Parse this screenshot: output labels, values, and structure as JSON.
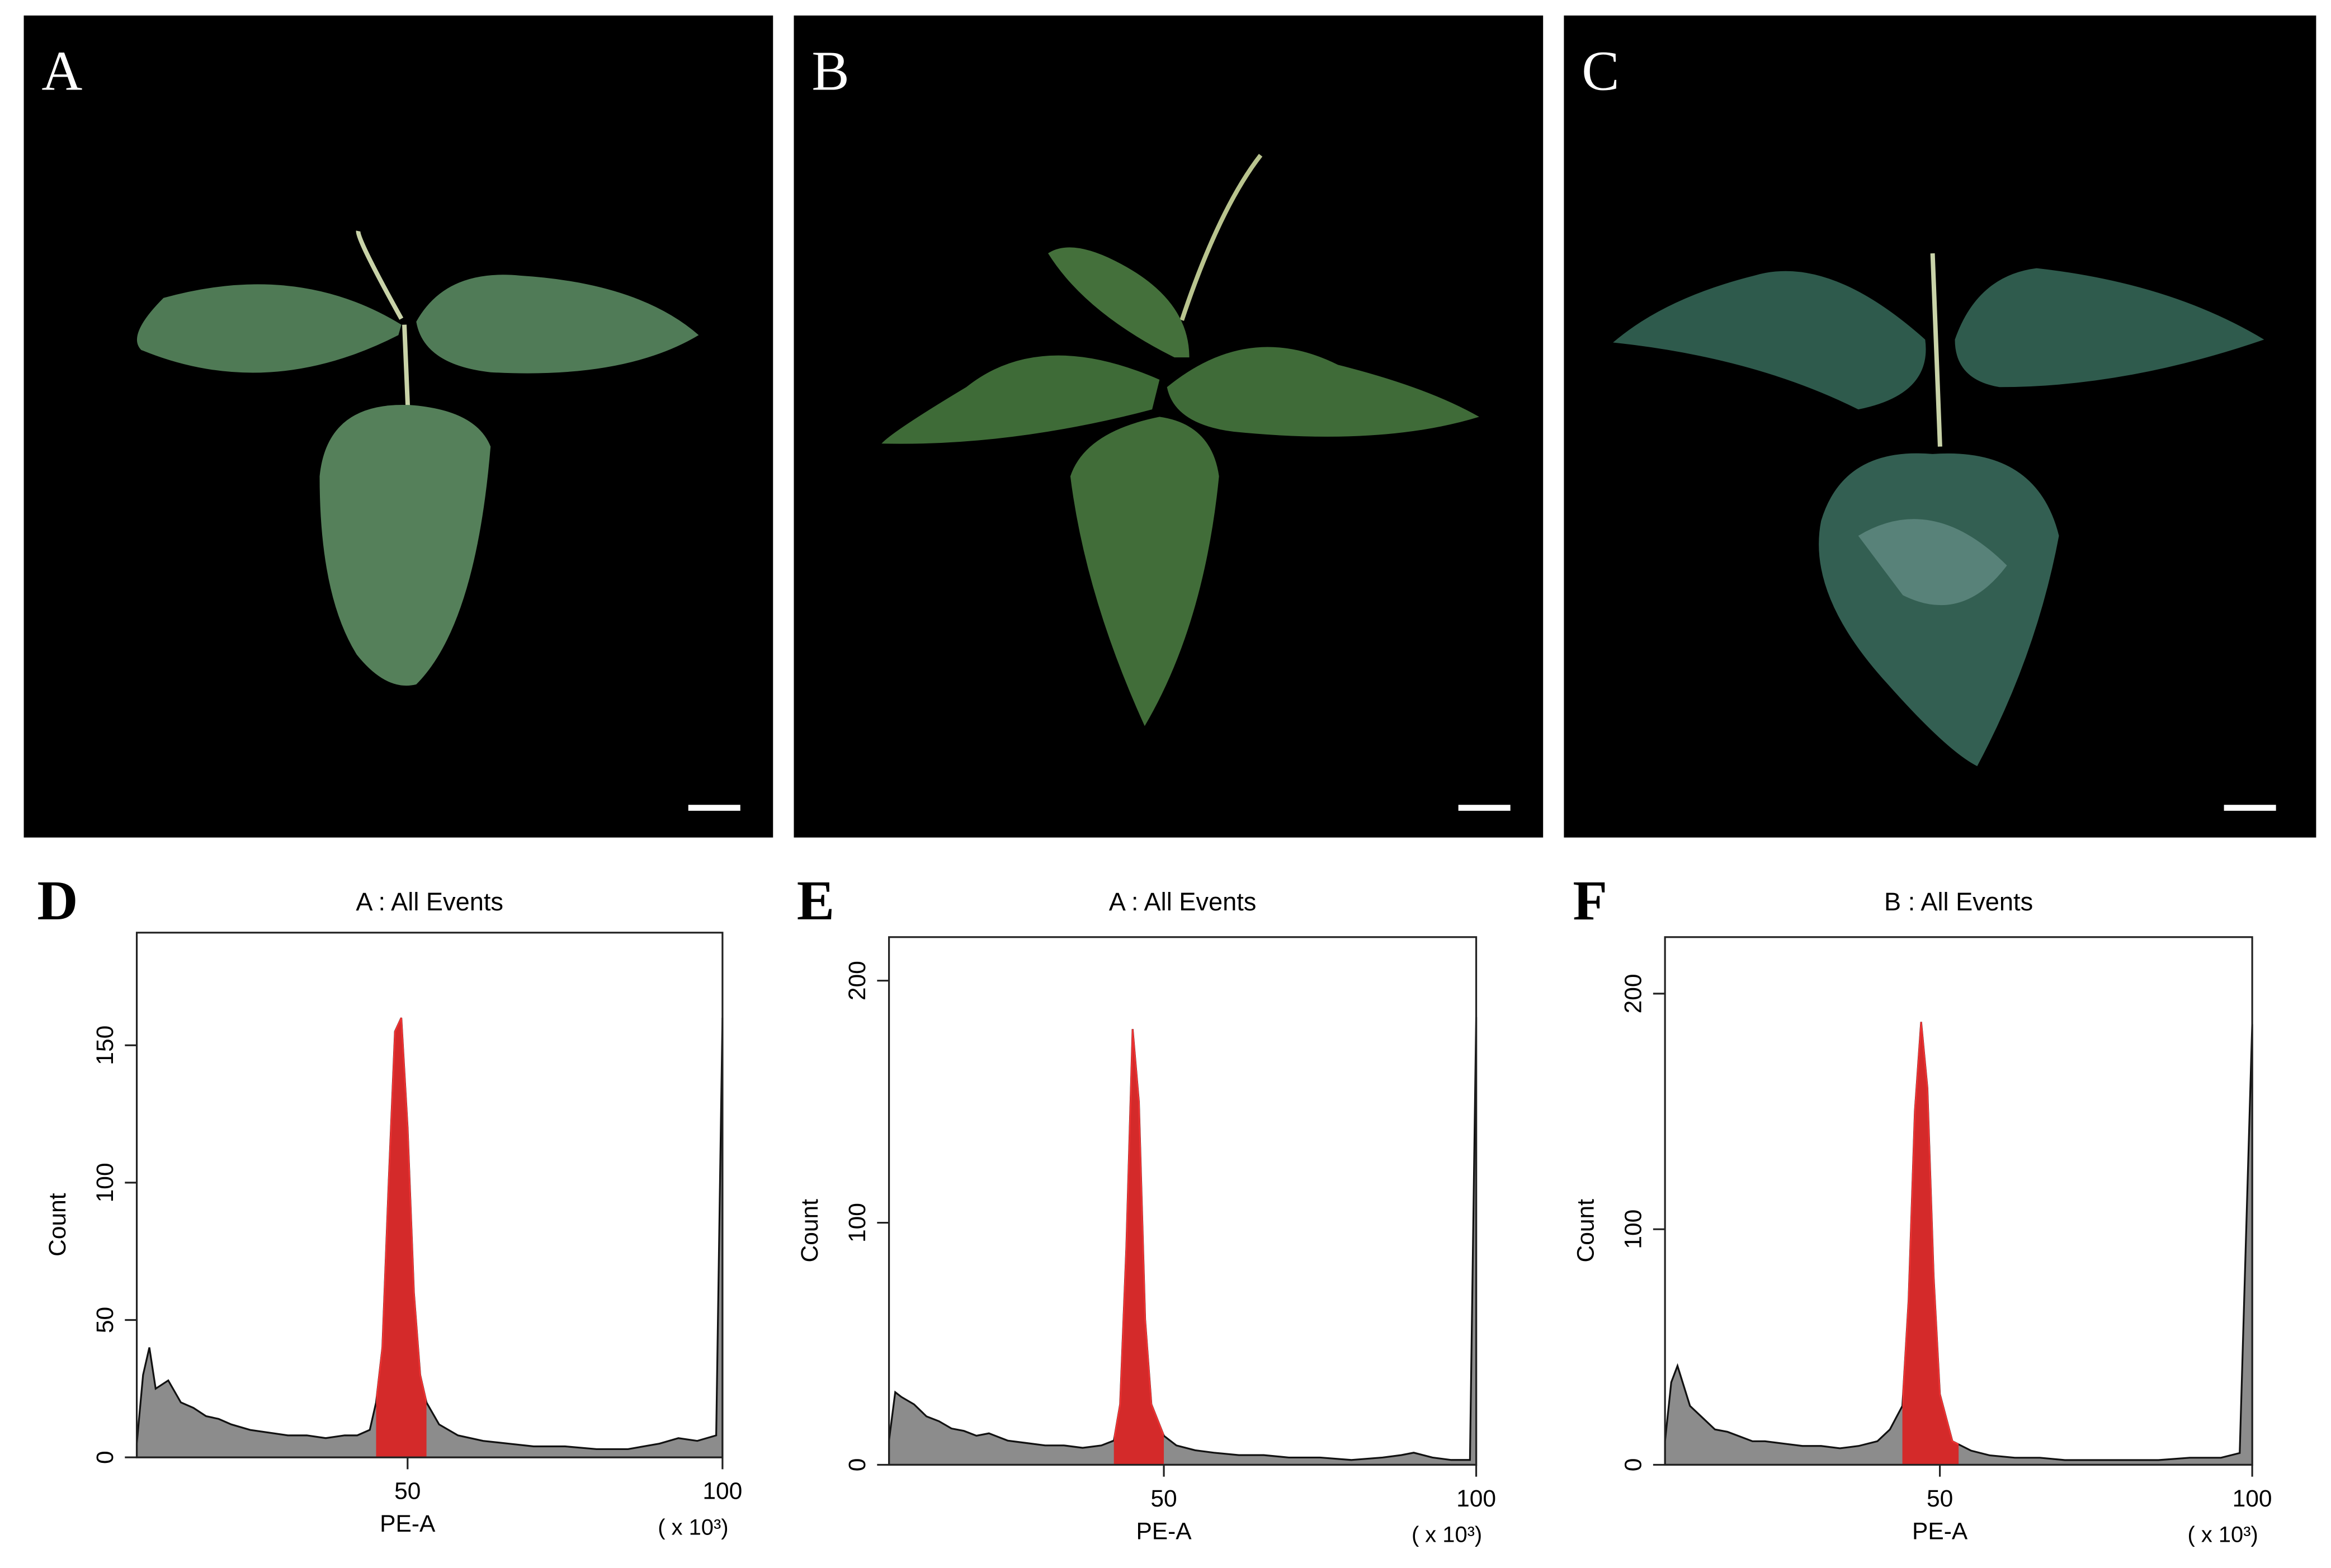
{
  "photo_panels": [
    {
      "label": "A"
    },
    {
      "label": "B"
    },
    {
      "label": "C"
    }
  ],
  "chart_data": [
    {
      "type": "histogram",
      "panel": "D",
      "title": "A : All Events",
      "xlabel": "PE-A",
      "ylabel": "Count",
      "x_unit": "( x 10³)",
      "x": [
        7,
        8,
        9,
        10,
        12,
        14,
        16,
        18,
        20,
        22,
        25,
        28,
        31,
        34,
        37,
        40,
        42,
        44,
        45,
        46,
        47,
        48,
        49,
        50,
        51,
        52,
        53,
        55,
        58,
        62,
        66,
        70,
        75,
        80,
        85,
        90,
        93,
        96,
        99,
        100
      ],
      "values": [
        5,
        30,
        40,
        25,
        28,
        20,
        18,
        15,
        14,
        12,
        10,
        9,
        8,
        8,
        7,
        8,
        8,
        10,
        20,
        40,
        100,
        155,
        160,
        120,
        60,
        30,
        20,
        12,
        8,
        6,
        5,
        4,
        4,
        3,
        3,
        5,
        7,
        6,
        8,
        160
      ],
      "gate": [
        45,
        53
      ],
      "color": "#8c8c8c",
      "gate_color": "#d42a2a",
      "xlim": [
        7,
        100
      ],
      "ylim": [
        0,
        191
      ],
      "xticks": [
        50,
        100
      ],
      "yticks": [
        0,
        50,
        100,
        150
      ]
    },
    {
      "type": "histogram",
      "panel": "E",
      "title": "A : All Events",
      "xlabel": "PE-A",
      "ylabel": "Count",
      "x_unit": "( x 10³)",
      "x": [
        6,
        7,
        8,
        10,
        12,
        14,
        16,
        18,
        20,
        22,
        25,
        28,
        31,
        34,
        37,
        40,
        42,
        43,
        44,
        45,
        46,
        47,
        48,
        50,
        52,
        55,
        58,
        62,
        66,
        70,
        75,
        80,
        85,
        88,
        90,
        93,
        96,
        99,
        100
      ],
      "values": [
        10,
        30,
        28,
        25,
        20,
        18,
        15,
        14,
        12,
        13,
        10,
        9,
        8,
        8,
        7,
        8,
        10,
        25,
        90,
        180,
        150,
        60,
        25,
        12,
        8,
        6,
        5,
        4,
        4,
        3,
        3,
        2,
        3,
        4,
        5,
        3,
        2,
        2,
        185
      ],
      "gate": [
        42,
        50
      ],
      "color": "#8c8c8c",
      "gate_color": "#d42a2a",
      "xlim": [
        6,
        100
      ],
      "ylim": [
        0,
        218
      ],
      "xticks": [
        50,
        100
      ],
      "yticks": [
        0,
        100,
        200
      ]
    },
    {
      "type": "histogram",
      "panel": "F",
      "title": "B : All Events",
      "xlabel": "PE-A",
      "ylabel": "Count",
      "x_unit": "( x 10³)",
      "x": [
        6,
        7,
        8,
        10,
        12,
        14,
        16,
        18,
        20,
        22,
        25,
        28,
        31,
        34,
        37,
        40,
        42,
        44,
        45,
        46,
        47,
        48,
        49,
        50,
        52,
        55,
        58,
        62,
        66,
        70,
        75,
        80,
        85,
        90,
        95,
        98,
        100
      ],
      "values": [
        10,
        35,
        42,
        25,
        20,
        15,
        14,
        12,
        10,
        10,
        9,
        8,
        8,
        7,
        8,
        10,
        15,
        25,
        70,
        150,
        188,
        160,
        80,
        30,
        10,
        6,
        4,
        3,
        3,
        2,
        2,
        2,
        2,
        3,
        3,
        5,
        187
      ],
      "gate": [
        44,
        53
      ],
      "color": "#8c8c8c",
      "gate_color": "#d42a2a",
      "xlim": [
        6,
        100
      ],
      "ylim": [
        0,
        224
      ],
      "xticks": [
        50,
        100
      ],
      "yticks": [
        0,
        100,
        200
      ]
    }
  ]
}
